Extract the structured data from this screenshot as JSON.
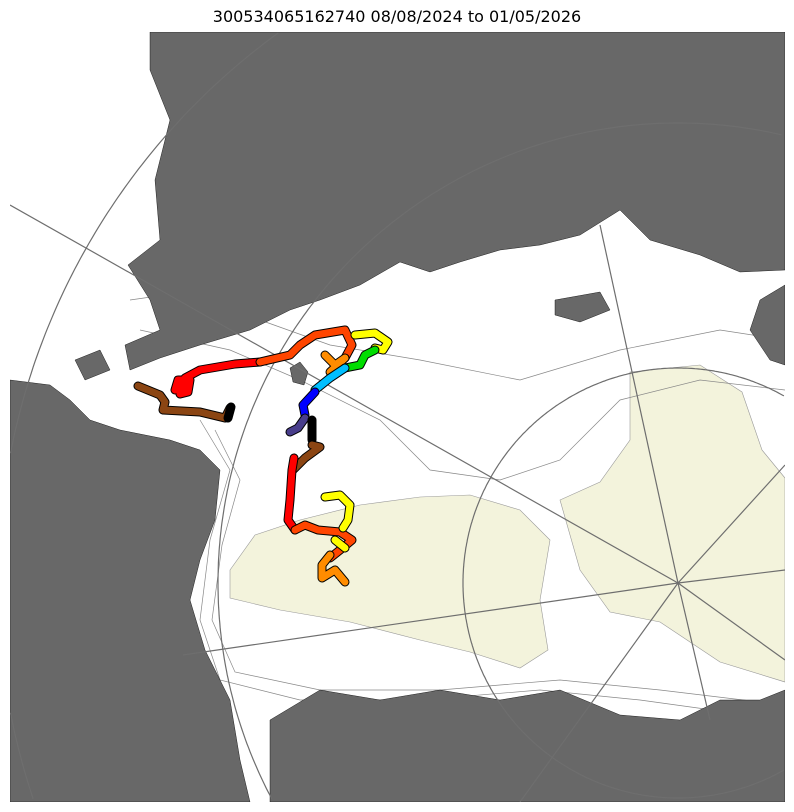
{
  "title": "300534065162740  08/08/2024 to 01/05/2026",
  "colors": {
    "land": "#686868",
    "ocean": "#ffffff",
    "ice_region": "#f3f3dc",
    "contour": "#888888",
    "graticule": "#6e6e6e"
  },
  "track_colors": [
    "#8b4513",
    "#000000",
    "#ff0000",
    "#ff4500",
    "#ff8c00",
    "#ffff00",
    "#00dd00",
    "#00bfff",
    "#0000ff",
    "#483d8b"
  ]
}
